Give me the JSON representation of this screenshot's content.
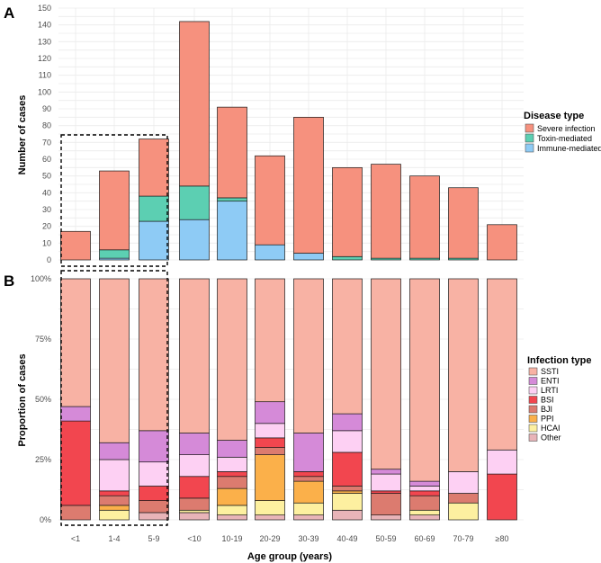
{
  "chart_data": [
    {
      "type": "bar",
      "stacked": true,
      "panel_label": "A",
      "categories": [
        "<1",
        "1-4",
        "5-9",
        "<10",
        "10-19",
        "20-29",
        "30-39",
        "40-49",
        "50-59",
        "60-69",
        "70-79",
        "≥80"
      ],
      "ylabel": "Number of cases",
      "xlabel": "",
      "ylim": [
        0,
        150
      ],
      "yticks": [
        0,
        10,
        20,
        30,
        40,
        50,
        60,
        70,
        80,
        90,
        100,
        110,
        120,
        130,
        140,
        150
      ],
      "legend_title": "Disease type",
      "legend_position": "right",
      "series": [
        {
          "name": "Immune-mediated",
          "color": "#8ecbf5",
          "values": [
            0,
            1,
            23,
            24,
            35,
            9,
            4,
            0,
            0,
            0,
            0,
            0
          ]
        },
        {
          "name": "Toxin-mediated",
          "color": "#5ccfb2",
          "values": [
            0,
            5,
            15,
            20,
            2,
            0,
            0,
            2,
            1,
            1,
            1,
            0
          ]
        },
        {
          "name": "Severe infection",
          "color": "#f6917e",
          "values": [
            17,
            47,
            34,
            98,
            54,
            53,
            81,
            53,
            56,
            49,
            42,
            21
          ]
        }
      ],
      "legend_order": [
        "Severe infection",
        "Toxin-mediated",
        "Immune-mediated"
      ]
    },
    {
      "type": "bar",
      "stacked": true,
      "normalized": true,
      "panel_label": "B",
      "categories": [
        "<1",
        "1-4",
        "5-9",
        "<10",
        "10-19",
        "20-29",
        "30-39",
        "40-49",
        "50-59",
        "60-69",
        "70-79",
        "≥80"
      ],
      "ylabel": "Proportion of cases",
      "xlabel": "Age group (years)",
      "ylim": [
        0,
        100
      ],
      "yticks": [
        "0%",
        "25%",
        "50%",
        "75%",
        "100%"
      ],
      "legend_title": "Infection type",
      "legend_position": "right",
      "series": [
        {
          "name": "Other",
          "color": "#e8b4b8",
          "values": [
            0,
            0,
            3,
            3,
            2,
            2,
            2,
            4,
            2,
            2,
            0,
            0
          ]
        },
        {
          "name": "HCAI",
          "color": "#fdf0a0",
          "values": [
            0,
            4,
            0,
            1,
            4,
            6,
            5,
            7,
            0,
            2,
            7,
            0
          ]
        },
        {
          "name": "PPI",
          "color": "#fbb04a",
          "values": [
            0,
            2,
            0,
            0,
            7,
            19,
            9,
            1,
            0,
            0,
            0,
            0
          ]
        },
        {
          "name": "BJI",
          "color": "#dc7b6f",
          "values": [
            6,
            4,
            5,
            5,
            5,
            3,
            2,
            2,
            9,
            6,
            4,
            0
          ]
        },
        {
          "name": "BSI",
          "color": "#f2464f",
          "values": [
            35,
            2,
            6,
            9,
            2,
            4,
            2,
            14,
            1,
            2,
            0,
            19
          ]
        },
        {
          "name": "LRTI",
          "color": "#fdd0f3",
          "values": [
            0,
            13,
            10,
            9,
            6,
            6,
            0,
            9,
            7,
            2,
            9,
            10
          ]
        },
        {
          "name": "ENTI",
          "color": "#d58ad8",
          "values": [
            6,
            7,
            13,
            9,
            7,
            9,
            16,
            7,
            2,
            2,
            0,
            0
          ]
        },
        {
          "name": "SSTI",
          "color": "#f8b2a4",
          "values": [
            53,
            68,
            63,
            64,
            67,
            51,
            64,
            56,
            79,
            84,
            80,
            71
          ]
        }
      ],
      "legend_order": [
        "SSTI",
        "ENTI",
        "LRTI",
        "BSI",
        "BJI",
        "PPI",
        "HCAI",
        "Other"
      ]
    }
  ]
}
